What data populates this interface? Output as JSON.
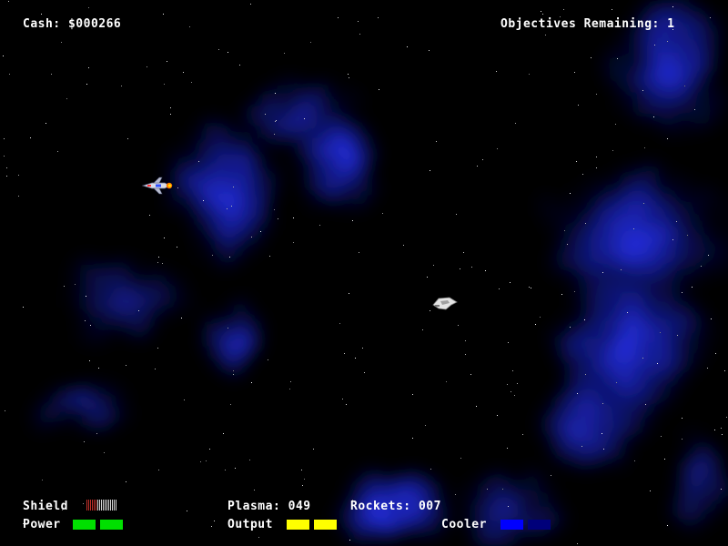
{
  "hud": {
    "cash_label": "Cash: $000266",
    "objectives_label": "Objectives Remaining: 1",
    "shield_label": "Shield",
    "power_label": "Power",
    "plasma_label": "Plasma: 049",
    "rockets_label": "Rockets: 007",
    "output_label": "Output",
    "cooler_label": "Cooler"
  },
  "gauges": {
    "shield": {
      "filled_fraction": 0.33,
      "ticks": 17,
      "filled_color": "#c0302a",
      "empty_color": "#d8d8d8"
    },
    "power": {
      "segments": 2,
      "filled": 2,
      "color": "#00e000"
    },
    "output": {
      "segments": 2,
      "filled": 2,
      "color": "#ffff00"
    },
    "cooler": {
      "segments": 2,
      "filled": 1,
      "color": "#0000ff",
      "empty_color": "#00007a"
    }
  },
  "colors": {
    "background": "#000000",
    "nebula": "#1a22d0",
    "hud_text": "#ffffff"
  },
  "sprites": {
    "player_ship": "player-ship-icon",
    "enemy_ship": "enemy-ship-icon"
  }
}
